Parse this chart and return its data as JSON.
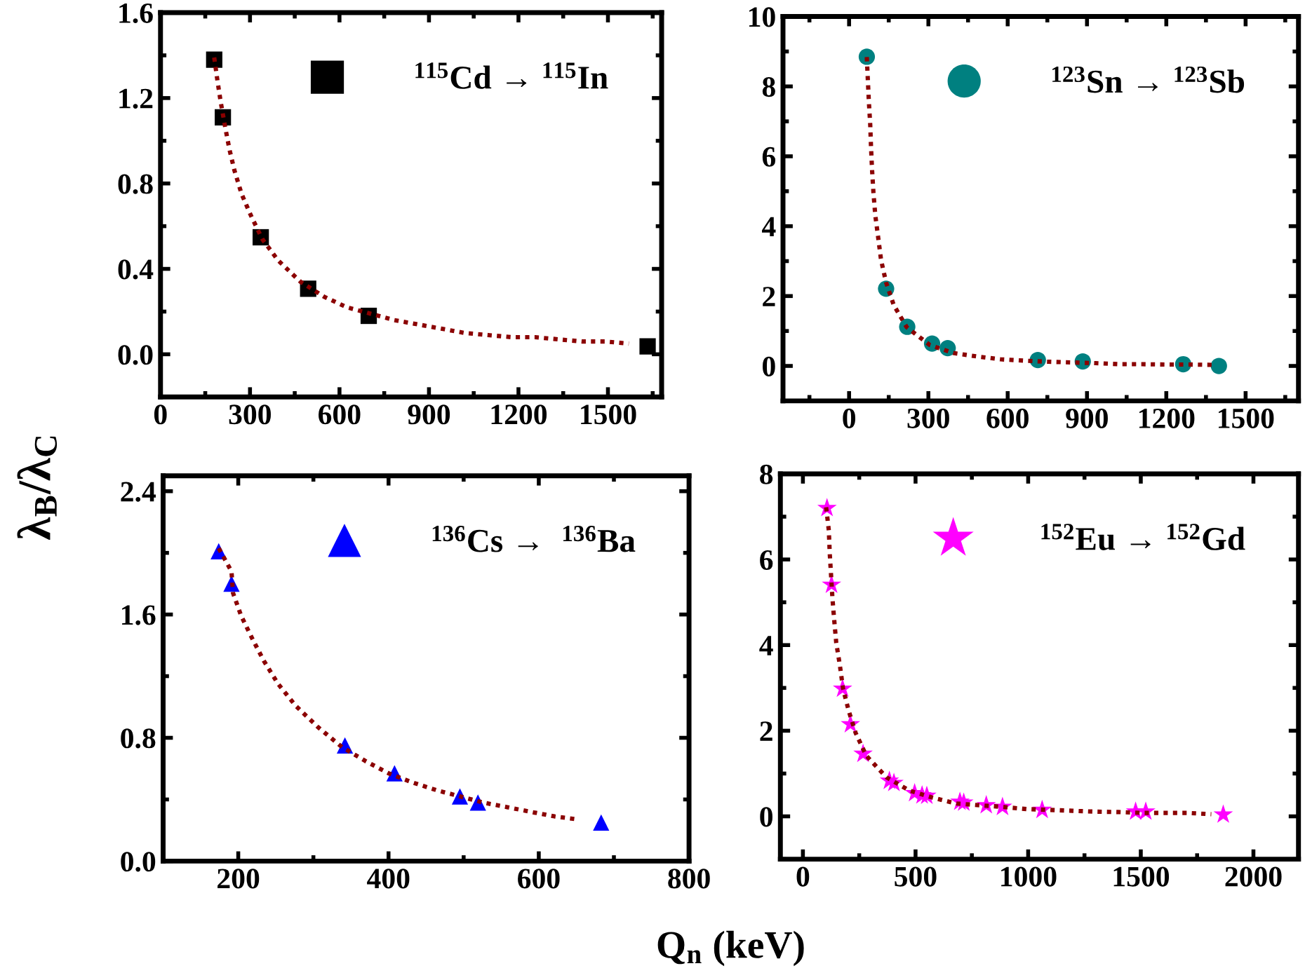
{
  "chart_data": [
    {
      "type": "scatter",
      "ylabel": "λ$_{B}$/λ$_{C}$",
      "xlim": [
        0,
        1680
      ],
      "xticks": [
        0,
        300,
        600,
        900,
        1200,
        1500
      ],
      "ylim": [
        -0.2,
        1.6
      ],
      "yticks": [
        {
          "value": 0,
          "label": "0.0"
        },
        0.4,
        0.8,
        1.2,
        1.6
      ],
      "legend": "top right",
      "grid": false,
      "series": [
        {
          "type": "line",
          "color": "#8b0000",
          "line_style": "dotted",
          "marker": "none",
          "x": [
            180,
            191,
            202,
            216,
            231,
            248,
            272,
            303,
            341,
            394,
            469,
            548,
            625,
            784,
            863,
            941,
            1019,
            1098,
            1178,
            1256,
            1334,
            1413,
            1491,
            1570
          ],
          "values": [
            1.39,
            1.28,
            1.18,
            1.07,
            0.96,
            0.86,
            0.75,
            0.65,
            0.54,
            0.44,
            0.34,
            0.27,
            0.22,
            0.16,
            0.14,
            0.12,
            0.1,
            0.09,
            0.08,
            0.08,
            0.07,
            0.06,
            0.06,
            0.05
          ]
        },
        {
          "name": "$^{115}$Cd → $^{115}$In",
          "color": "#000000",
          "marker": "square",
          "x": [
            180,
            209,
            336,
            495,
            698,
            1633
          ],
          "values": [
            1.38,
            1.11,
            0.548,
            0.307,
            0.18,
            0.037
          ]
        }
      ]
    },
    {
      "type": "scatter",
      "xlim": [
        -250,
        1700
      ],
      "xticks": [
        0,
        300,
        600,
        900,
        1200,
        1500
      ],
      "ylim": [
        -1,
        10
      ],
      "yticks": [
        0,
        2,
        4,
        6,
        8,
        10
      ],
      "legend": "top right",
      "grid": false,
      "series": [
        {
          "type": "line",
          "color": "#8b0000",
          "line_style": "dotted",
          "marker": "none",
          "x": [
            67,
            71,
            75,
            80,
            83,
            87,
            92,
            99,
            110,
            121,
            140,
            169,
            218,
            305,
            394,
            485,
            573,
            664,
            753,
            932,
            1021,
            1109,
            1198,
            1289,
            1377
          ],
          "values": [
            8.84,
            8.18,
            7.54,
            6.9,
            6.26,
            5.6,
            4.97,
            4.32,
            3.68,
            3.03,
            2.39,
            1.74,
            1.11,
            0.6,
            0.37,
            0.27,
            0.19,
            0.15,
            0.12,
            0.08,
            0.05,
            0.05,
            0.04,
            0.04,
            0.03
          ]
        },
        {
          "name": "$^{123}$Sn → $^{123}$Sb",
          "color": "#008080",
          "marker": "circle",
          "x": [
            67,
            140,
            220,
            314,
            373,
            714,
            884,
            1264,
            1399
          ],
          "values": [
            8.85,
            2.21,
            1.12,
            0.64,
            0.51,
            0.17,
            0.13,
            0.05,
            0.0
          ]
        }
      ]
    },
    {
      "type": "scatter",
      "xlabel": "Q$_{n}$ (keV)",
      "xlim": [
        100,
        800
      ],
      "xticks": [
        200,
        400,
        600,
        800
      ],
      "ylim": [
        0,
        2.5
      ],
      "yticks": [
        {
          "value": 0,
          "label": "0.0"
        },
        0.8,
        1.6,
        2.4
      ],
      "legend": "top right",
      "grid": false,
      "series": [
        {
          "type": "line",
          "color": "#8b0000",
          "line_style": "dotted",
          "marker": "none",
          "x": [
            174,
            191,
            193,
            204,
            219,
            234,
            253,
            276,
            306,
            338,
            369,
            400,
            432,
            464,
            495,
            526,
            558,
            589,
            621,
            653
          ],
          "values": [
            2.03,
            1.88,
            1.74,
            1.59,
            1.44,
            1.3,
            1.15,
            1.01,
            0.87,
            0.74,
            0.65,
            0.57,
            0.51,
            0.46,
            0.42,
            0.38,
            0.35,
            0.32,
            0.29,
            0.27
          ]
        },
        {
          "name": "$^{136}$Cs →  $^{136}$Ba",
          "color": "#0000ff",
          "marker": "triangle",
          "x": [
            174,
            191,
            342,
            408,
            495,
            519,
            683
          ],
          "values": [
            2.01,
            1.8,
            0.75,
            0.57,
            0.42,
            0.38,
            0.25
          ]
        }
      ]
    },
    {
      "type": "scatter",
      "xlim": [
        -100,
        2200
      ],
      "xticks": [
        0,
        500,
        1000,
        1500,
        2000
      ],
      "ylim": [
        -1,
        8
      ],
      "yticks": [
        0,
        2,
        4,
        6,
        8
      ],
      "legend": "top right",
      "grid": false,
      "series": [
        {
          "type": "line",
          "color": "#8b0000",
          "line_style": "dotted",
          "marker": "none",
          "x": [
            103,
            115,
            119,
            125,
            131,
            139,
            148,
            164,
            178,
            203,
            234,
            281,
            371,
            474,
            574,
            681,
            784,
            888,
            992,
            1094,
            1196,
            1298,
            1401,
            1503,
            1608,
            1710,
            1813
          ],
          "values": [
            7.22,
            6.68,
            6.15,
            5.63,
            5.1,
            4.58,
            4.05,
            3.53,
            2.99,
            2.47,
            1.95,
            1.42,
            0.91,
            0.6,
            0.44,
            0.3,
            0.26,
            0.22,
            0.17,
            0.15,
            0.13,
            0.11,
            0.1,
            0.08,
            0.08,
            0.08,
            0.05
          ]
        },
        {
          "name": "$^{152}$Eu → $^{152}$Gd",
          "color": "#ff00ff",
          "marker": "star",
          "x": [
            107,
            127,
            176,
            211,
            267,
            384,
            404,
            496,
            529,
            550,
            697,
            714,
            814,
            886,
            1062,
            1477,
            1522,
            1866
          ],
          "values": [
            7.2,
            5.41,
            2.98,
            2.15,
            1.46,
            0.83,
            0.78,
            0.54,
            0.49,
            0.48,
            0.34,
            0.32,
            0.26,
            0.22,
            0.15,
            0.11,
            0.11,
            0.04
          ]
        }
      ]
    }
  ]
}
